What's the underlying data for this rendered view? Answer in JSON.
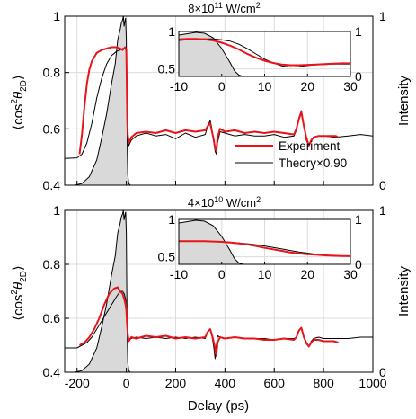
{
  "figure": {
    "xlabel": "Delay (ps)",
    "shared_x_ticks": [
      "-200",
      "0",
      "200",
      "400",
      "600",
      "800",
      "1000"
    ]
  },
  "colors": {
    "experiment": "#e8141b",
    "theory": "#000000",
    "intensity_fill": "#d9d9d9",
    "grid": "#dcdcdc"
  },
  "chart_data": [
    {
      "type": "line",
      "title": "8×10¹¹ W/cm²",
      "xlabel": "",
      "ylabel": "⟨cos²θ2D⟩",
      "y2label": "Intensity",
      "xlim": [
        -250,
        1000
      ],
      "ylim": [
        0.4,
        1.0
      ],
      "y2lim": [
        0,
        1
      ],
      "yticks": [
        "0.4",
        "0.6",
        "0.8",
        "1"
      ],
      "y2ticks": [
        "0",
        "1"
      ],
      "grid": true,
      "legend": {
        "position": "lower-right",
        "entries": [
          "Experiment",
          "Theory×0.90"
        ]
      },
      "series": [
        {
          "name": "Experiment",
          "x": [
            -190,
            -180,
            -170,
            -160,
            -150,
            -140,
            -120,
            -100,
            -80,
            -60,
            -40,
            -25,
            -15,
            -10,
            -5,
            0,
            3,
            6,
            10,
            20,
            40,
            80,
            120,
            160,
            200,
            240,
            280,
            320,
            330,
            340,
            345,
            350,
            355,
            360,
            365,
            370,
            380,
            400,
            440,
            480,
            520,
            560,
            600,
            640,
            680,
            690,
            700,
            710,
            720,
            730,
            740,
            750,
            760,
            780,
            800,
            850,
            860
          ],
          "y": [
            0.51,
            0.58,
            0.68,
            0.76,
            0.81,
            0.84,
            0.87,
            0.88,
            0.885,
            0.89,
            0.89,
            0.885,
            0.88,
            0.885,
            0.89,
            0.88,
            0.69,
            0.58,
            0.55,
            0.57,
            0.585,
            0.59,
            0.585,
            0.595,
            0.585,
            0.595,
            0.59,
            0.595,
            0.61,
            0.62,
            0.6,
            0.58,
            0.56,
            0.53,
            0.52,
            0.57,
            0.6,
            0.59,
            0.595,
            0.585,
            0.59,
            0.585,
            0.59,
            0.585,
            0.58,
            0.6,
            0.635,
            0.66,
            0.61,
            0.57,
            0.54,
            0.56,
            0.57,
            0.575,
            0.575,
            0.575,
            0.57
          ]
        },
        {
          "name": "Theory×0.90",
          "x": [
            -250,
            -200,
            -180,
            -160,
            -140,
            -120,
            -100,
            -80,
            -60,
            -40,
            -25,
            -15,
            -10,
            -5,
            0,
            3,
            6,
            10,
            20,
            40,
            80,
            120,
            160,
            200,
            240,
            280,
            320,
            330,
            340,
            345,
            350,
            355,
            360,
            365,
            370,
            380,
            400,
            440,
            480,
            520,
            560,
            600,
            640,
            680,
            690,
            700,
            710,
            720,
            730,
            740,
            750,
            760,
            780,
            800,
            850,
            900,
            950,
            1000
          ],
          "y": [
            0.495,
            0.497,
            0.51,
            0.55,
            0.62,
            0.71,
            0.78,
            0.83,
            0.86,
            0.875,
            0.88,
            0.885,
            0.885,
            0.89,
            0.87,
            0.66,
            0.56,
            0.54,
            0.56,
            0.575,
            0.585,
            0.575,
            0.58,
            0.565,
            0.585,
            0.57,
            0.58,
            0.61,
            0.63,
            0.61,
            0.58,
            0.55,
            0.52,
            0.51,
            0.55,
            0.59,
            0.585,
            0.575,
            0.58,
            0.575,
            0.575,
            0.58,
            0.57,
            0.575,
            0.595,
            0.64,
            0.665,
            0.61,
            0.56,
            0.54,
            0.555,
            0.57,
            0.575,
            0.575,
            0.57,
            0.575,
            0.58,
            0.575
          ]
        },
        {
          "name": "Intensity",
          "x": [
            -210,
            -180,
            -150,
            -120,
            -100,
            -80,
            -60,
            -45,
            -35,
            -25,
            -20,
            -15,
            -12,
            -9,
            -6,
            -3,
            0,
            2,
            4,
            6,
            10,
            16
          ],
          "y": [
            0.0,
            0.01,
            0.05,
            0.15,
            0.28,
            0.42,
            0.6,
            0.72,
            0.86,
            0.92,
            0.96,
            0.98,
            1.0,
            0.94,
            0.97,
            0.99,
            0.86,
            0.5,
            0.2,
            0.06,
            0.01,
            0.0
          ]
        }
      ],
      "inset": {
        "xlim": [
          -10,
          30
        ],
        "ylim": [
          0.4,
          1.0
        ],
        "y2lim": [
          0,
          1
        ],
        "xticks": [
          "-10",
          "0",
          "10",
          "20",
          "30"
        ],
        "yticks": [
          "0.5",
          "1"
        ],
        "y2ticks": [
          "0",
          "1"
        ],
        "series": [
          {
            "name": "Experiment",
            "x": [
              -10,
              -8,
              -6,
              -4,
              -2,
              0,
              2,
              4,
              6,
              8,
              10,
              12,
              14,
              16,
              18,
              20,
              22,
              24,
              26,
              28,
              30
            ],
            "y": [
              0.895,
              0.9,
              0.9,
              0.895,
              0.88,
              0.85,
              0.81,
              0.76,
              0.7,
              0.65,
              0.61,
              0.58,
              0.56,
              0.55,
              0.55,
              0.555,
              0.56,
              0.565,
              0.57,
              0.575,
              0.575
            ]
          },
          {
            "name": "Theory×0.90",
            "x": [
              -10,
              -8,
              -6,
              -4,
              -2,
              0,
              2,
              4,
              6,
              8,
              10,
              12,
              14,
              16,
              18,
              20,
              22,
              24,
              26,
              28,
              30
            ],
            "y": [
              0.88,
              0.89,
              0.895,
              0.9,
              0.9,
              0.89,
              0.87,
              0.83,
              0.77,
              0.7,
              0.63,
              0.58,
              0.54,
              0.525,
              0.53,
              0.545,
              0.555,
              0.56,
              0.565,
              0.565,
              0.565
            ]
          },
          {
            "name": "Intensity",
            "x": [
              -10,
              -8,
              -6,
              -4,
              -2,
              0,
              2,
              3,
              4,
              5
            ],
            "y": [
              0.92,
              0.95,
              0.98,
              0.96,
              0.86,
              0.62,
              0.3,
              0.12,
              0.03,
              0.0
            ]
          }
        ]
      }
    },
    {
      "type": "line",
      "title": "4×10¹⁰ W/cm²",
      "xlabel": "Delay (ps)",
      "ylabel": "⟨cos²θ2D⟩",
      "y2label": "Intensity",
      "xlim": [
        -250,
        1000
      ],
      "ylim": [
        0.4,
        1.0
      ],
      "y2lim": [
        0,
        1
      ],
      "yticks": [
        "0.4",
        "0.6",
        "0.8",
        "1"
      ],
      "y2ticks": [
        "0",
        "1"
      ],
      "grid": true,
      "series": [
        {
          "name": "Experiment",
          "x": [
            -190,
            -170,
            -150,
            -130,
            -110,
            -90,
            -70,
            -50,
            -35,
            -25,
            -15,
            -8,
            -3,
            0,
            3,
            6,
            10,
            20,
            40,
            80,
            120,
            160,
            200,
            240,
            280,
            320,
            330,
            340,
            345,
            350,
            355,
            360,
            365,
            370,
            380,
            400,
            440,
            480,
            520,
            560,
            600,
            640,
            680,
            690,
            700,
            710,
            720,
            730,
            740,
            750,
            760,
            780,
            800,
            840,
            860
          ],
          "y": [
            0.5,
            0.51,
            0.53,
            0.56,
            0.6,
            0.65,
            0.69,
            0.71,
            0.715,
            0.7,
            0.69,
            0.67,
            0.65,
            0.63,
            0.58,
            0.54,
            0.515,
            0.53,
            0.525,
            0.535,
            0.53,
            0.535,
            0.525,
            0.53,
            0.525,
            0.53,
            0.55,
            0.56,
            0.545,
            0.53,
            0.51,
            0.49,
            0.46,
            0.51,
            0.53,
            0.525,
            0.53,
            0.525,
            0.525,
            0.52,
            0.52,
            0.525,
            0.52,
            0.53,
            0.555,
            0.565,
            0.53,
            0.51,
            0.495,
            0.51,
            0.52,
            0.52,
            0.515,
            0.515,
            0.51
          ]
        },
        {
          "name": "Theory×0.90",
          "x": [
            -250,
            -200,
            -180,
            -160,
            -140,
            -120,
            -100,
            -80,
            -60,
            -40,
            -25,
            -15,
            -8,
            -3,
            0,
            3,
            6,
            10,
            20,
            40,
            80,
            120,
            160,
            200,
            240,
            280,
            320,
            330,
            340,
            345,
            350,
            355,
            360,
            365,
            370,
            380,
            400,
            440,
            480,
            520,
            560,
            600,
            640,
            680,
            690,
            700,
            710,
            720,
            730,
            740,
            750,
            760,
            780,
            800,
            850,
            900,
            950,
            1000
          ],
          "y": [
            0.49,
            0.49,
            0.5,
            0.51,
            0.53,
            0.56,
            0.59,
            0.62,
            0.65,
            0.68,
            0.7,
            0.7,
            0.69,
            0.67,
            0.64,
            0.59,
            0.545,
            0.52,
            0.525,
            0.53,
            0.525,
            0.53,
            0.525,
            0.53,
            0.525,
            0.53,
            0.525,
            0.55,
            0.56,
            0.545,
            0.52,
            0.49,
            0.45,
            0.5,
            0.535,
            0.53,
            0.525,
            0.53,
            0.525,
            0.525,
            0.525,
            0.52,
            0.525,
            0.525,
            0.53,
            0.555,
            0.565,
            0.53,
            0.505,
            0.495,
            0.515,
            0.525,
            0.53,
            0.525,
            0.525,
            0.525,
            0.53,
            0.53
          ]
        },
        {
          "name": "Intensity",
          "x": [
            -210,
            -180,
            -150,
            -120,
            -100,
            -80,
            -60,
            -45,
            -35,
            -25,
            -20,
            -15,
            -12,
            -9,
            -6,
            -3,
            0,
            2,
            4,
            6,
            10,
            16
          ],
          "y": [
            0.0,
            0.01,
            0.05,
            0.15,
            0.28,
            0.42,
            0.6,
            0.72,
            0.86,
            0.92,
            0.96,
            0.98,
            1.0,
            0.94,
            0.97,
            0.99,
            0.86,
            0.5,
            0.2,
            0.06,
            0.01,
            0.0
          ]
        }
      ],
      "inset": {
        "xlim": [
          -10,
          30
        ],
        "ylim": [
          0.4,
          1.0
        ],
        "y2lim": [
          0,
          1
        ],
        "xticks": [
          "-10",
          "0",
          "10",
          "20",
          "30"
        ],
        "yticks": [
          "0.5",
          "1"
        ],
        "y2ticks": [
          "0",
          "1"
        ],
        "series": [
          {
            "name": "Experiment",
            "x": [
              -10,
              -8,
              -6,
              -4,
              -2,
              0,
              2,
              4,
              6,
              8,
              10,
              12,
              14,
              16,
              18,
              20,
              22,
              24,
              26,
              28,
              30
            ],
            "y": [
              0.71,
              0.71,
              0.71,
              0.71,
              0.705,
              0.7,
              0.69,
              0.68,
              0.665,
              0.645,
              0.62,
              0.6,
              0.58,
              0.56,
              0.545,
              0.535,
              0.53,
              0.52,
              0.515,
              0.51,
              0.51
            ]
          },
          {
            "name": "Theory×0.90",
            "x": [
              -10,
              -8,
              -6,
              -4,
              -2,
              0,
              2,
              4,
              6,
              8,
              10,
              12,
              14,
              16,
              18,
              20,
              22,
              24,
              26,
              28,
              30
            ],
            "y": [
              0.71,
              0.71,
              0.71,
              0.71,
              0.705,
              0.7,
              0.695,
              0.685,
              0.675,
              0.66,
              0.645,
              0.625,
              0.605,
              0.585,
              0.565,
              0.55,
              0.535,
              0.525,
              0.515,
              0.51,
              0.505
            ]
          },
          {
            "name": "Intensity",
            "x": [
              -10,
              -8,
              -6,
              -4,
              -2,
              0,
              2,
              3,
              4,
              5
            ],
            "y": [
              0.92,
              0.95,
              0.98,
              0.96,
              0.86,
              0.62,
              0.3,
              0.12,
              0.03,
              0.0
            ]
          }
        ]
      }
    }
  ]
}
